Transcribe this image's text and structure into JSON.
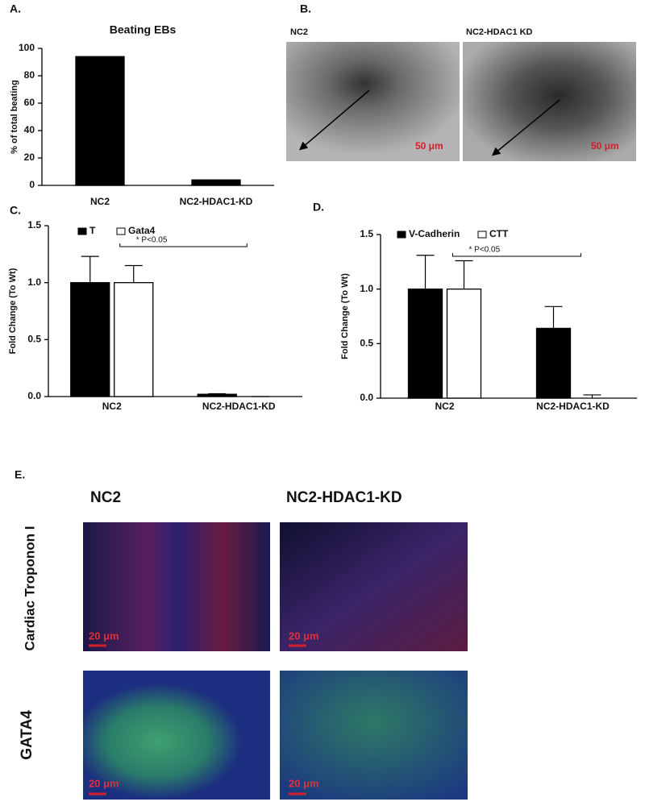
{
  "chart_data": [
    {
      "panel": "A.",
      "type": "bar",
      "title": "Beating EBs",
      "y_label": "% of total beating",
      "categories": [
        "NC2",
        "NC2-HDAC1-KD"
      ],
      "series": [
        {
          "name": null,
          "color": "#000000",
          "values": [
            94,
            4
          ]
        }
      ],
      "ylim": [
        0,
        100
      ],
      "yticks": [
        0,
        20,
        40,
        60,
        80,
        100
      ]
    },
    {
      "panel": "C.",
      "type": "bar",
      "y_label": "Fold Change (To Wt)",
      "annotation": "* P<0.05",
      "categories": [
        "NC2",
        "NC2-HDAC1-KD"
      ],
      "series": [
        {
          "name": "T",
          "color": "#000000",
          "values": [
            1.0,
            0.02
          ],
          "errors": [
            0.23,
            0.005
          ]
        },
        {
          "name": "Gata4",
          "color": "#ffffff",
          "values": [
            1.0,
            0
          ],
          "errors": [
            0.15,
            0
          ]
        }
      ],
      "ylim": [
        0,
        1.5
      ],
      "yticks": [
        {
          "value": 0,
          "label": "0.0"
        },
        0.5,
        {
          "value": 1,
          "label": "1.0"
        },
        1.5
      ]
    },
    {
      "panel": "D.",
      "type": "bar",
      "y_label": "Fold Change (To Wt)",
      "annotation": "* P<0.05",
      "categories": [
        "NC2",
        "NC2-HDAC1-KD"
      ],
      "series": [
        {
          "name": "V-Cadherin",
          "color": "#000000",
          "values": [
            1.0,
            0.64
          ],
          "errors": [
            0.31,
            0.2
          ]
        },
        {
          "name": "CTT",
          "color": "#ffffff",
          "values": [
            1.0,
            0
          ],
          "errors": [
            0.26,
            0.03
          ]
        }
      ],
      "ylim": [
        0,
        1.5
      ],
      "yticks": [
        {
          "value": 0,
          "label": "0.0"
        },
        0.5,
        {
          "value": 1,
          "label": "1.0"
        },
        1.5
      ]
    }
  ],
  "micrographs": [
    {
      "panel": "B.",
      "columns": [
        "NC2",
        "NC2-HDAC1 KD"
      ],
      "scale_bar": "50 μm"
    },
    {
      "panel": "E.",
      "columns": [
        "NC2",
        "NC2-HDAC1-KD"
      ],
      "rows": [
        "Cardiac Troponon I",
        "GATA4"
      ],
      "scale_bar": "20 μm"
    }
  ]
}
